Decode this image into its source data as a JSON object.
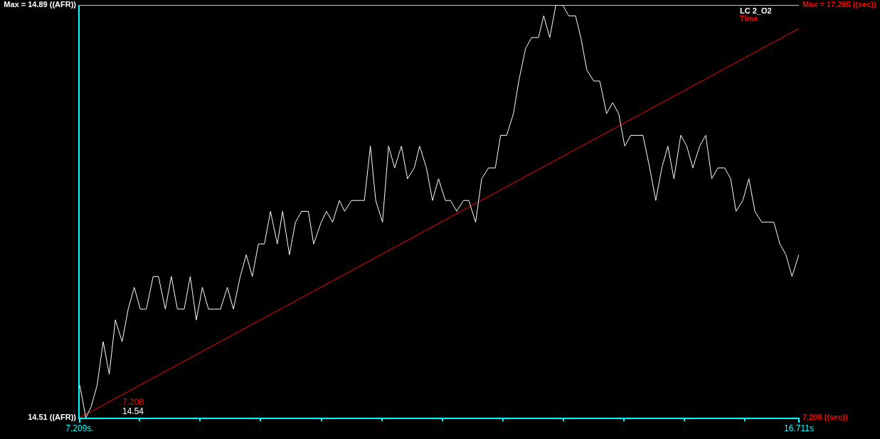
{
  "chart_data": {
    "type": "line",
    "x": [
      7.21,
      7.29,
      7.36,
      7.44,
      7.52,
      7.6,
      7.68,
      7.77,
      7.85,
      7.93,
      8.01,
      8.09,
      8.18,
      8.25,
      8.34,
      8.42,
      8.5,
      8.59,
      8.67,
      8.75,
      8.83,
      8.91,
      9.0,
      9.07,
      9.16,
      9.24,
      9.33,
      9.41,
      9.49,
      9.57,
      9.65,
      9.73,
      9.82,
      9.89,
      9.98,
      10.06,
      10.14,
      10.23,
      10.3,
      10.4,
      10.47,
      10.55,
      10.64,
      10.71,
      10.8,
      10.88,
      10.97,
      11.05,
      11.12,
      11.21,
      11.29,
      11.37,
      11.46,
      11.54,
      11.63,
      11.7,
      11.79,
      11.87,
      11.95,
      12.04,
      12.11,
      12.19,
      12.28,
      12.35,
      12.44,
      12.52,
      12.61,
      12.7,
      12.77,
      12.85,
      12.94,
      13.01,
      13.1,
      13.18,
      13.27,
      13.34,
      13.42,
      13.5,
      13.59,
      13.67,
      13.76,
      13.83,
      13.91,
      14.0,
      14.08,
      14.17,
      14.25,
      14.33,
      14.41,
      14.49,
      14.58,
      14.65,
      14.74,
      14.82,
      14.9,
      14.98,
      15.06,
      15.15,
      15.23,
      15.31,
      15.4,
      15.48,
      15.56,
      15.64,
      15.73,
      15.81,
      15.88,
      15.97,
      16.05,
      16.13,
      16.22,
      16.29,
      16.38,
      16.46,
      16.54,
      16.62,
      16.71
    ],
    "series": [
      {
        "name": "LC 2_O2",
        "color": "#ffffff",
        "values": [
          14.54,
          14.51,
          14.52,
          14.54,
          14.58,
          14.55,
          14.6,
          14.58,
          14.61,
          14.63,
          14.61,
          14.61,
          14.64,
          14.64,
          14.61,
          14.64,
          14.61,
          14.61,
          14.64,
          14.6,
          14.63,
          14.61,
          14.61,
          14.61,
          14.63,
          14.61,
          14.64,
          14.66,
          14.64,
          14.67,
          14.67,
          14.7,
          14.67,
          14.7,
          14.66,
          14.69,
          14.7,
          14.7,
          14.67,
          14.69,
          14.7,
          14.69,
          14.71,
          14.7,
          14.71,
          14.71,
          14.71,
          14.76,
          14.71,
          14.69,
          14.76,
          14.74,
          14.76,
          14.73,
          14.74,
          14.76,
          14.74,
          14.71,
          14.73,
          14.71,
          14.71,
          14.7,
          14.71,
          14.71,
          14.69,
          14.73,
          14.74,
          14.74,
          14.77,
          14.77,
          14.79,
          14.82,
          14.85,
          14.86,
          14.86,
          14.88,
          14.86,
          14.89,
          14.89,
          14.88,
          14.88,
          14.86,
          14.83,
          14.82,
          14.82,
          14.79,
          14.8,
          14.79,
          14.76,
          14.77,
          14.77,
          14.77,
          14.74,
          14.71,
          14.74,
          14.76,
          14.73,
          14.77,
          14.76,
          14.74,
          14.76,
          14.77,
          14.73,
          14.74,
          14.74,
          14.73,
          14.7,
          14.71,
          14.73,
          14.7,
          14.69,
          14.69,
          14.69,
          14.67,
          14.66,
          14.64,
          14.66
        ]
      },
      {
        "name": "Time",
        "color": "#ff0000",
        "axis": "y2",
        "x": [
          7.209,
          16.711
        ],
        "values": [
          7.208,
          16.71
        ]
      }
    ],
    "xlim": [
      7.209,
      16.711
    ],
    "xticks": [
      {
        "value": 7.209,
        "label": "7.209s."
      },
      {
        "value": 8.0,
        "label": null
      },
      {
        "value": 8.8,
        "label": null
      },
      {
        "value": 9.6,
        "label": null
      },
      {
        "value": 10.4,
        "label": null
      },
      {
        "value": 11.2,
        "label": null
      },
      {
        "value": 12.0,
        "label": null
      },
      {
        "value": 12.8,
        "label": null
      },
      {
        "value": 13.6,
        "label": null
      },
      {
        "value": 14.4,
        "label": null
      },
      {
        "value": 15.2,
        "label": null
      },
      {
        "value": 16.0,
        "label": null
      },
      {
        "value": 16.711,
        "label": "16.711s"
      }
    ],
    "ylim": [
      14.51,
      14.89
    ],
    "yticks": [
      {
        "value": 14.89,
        "label": "Max = 14.89 ((AFR))"
      },
      {
        "value": 14.51,
        "label": "14.51 ((AFR))"
      }
    ],
    "y2lim": [
      7.208,
      17.285
    ],
    "y2ticks": [
      {
        "value": 17.285,
        "label": "Max = 17.285 ((sec))"
      },
      {
        "value": 7.208,
        "label": "7.208 ((sec))"
      }
    ],
    "annotations": [
      "14.54",
      "7.208"
    ],
    "legend": "top right",
    "marker": "none"
  }
}
